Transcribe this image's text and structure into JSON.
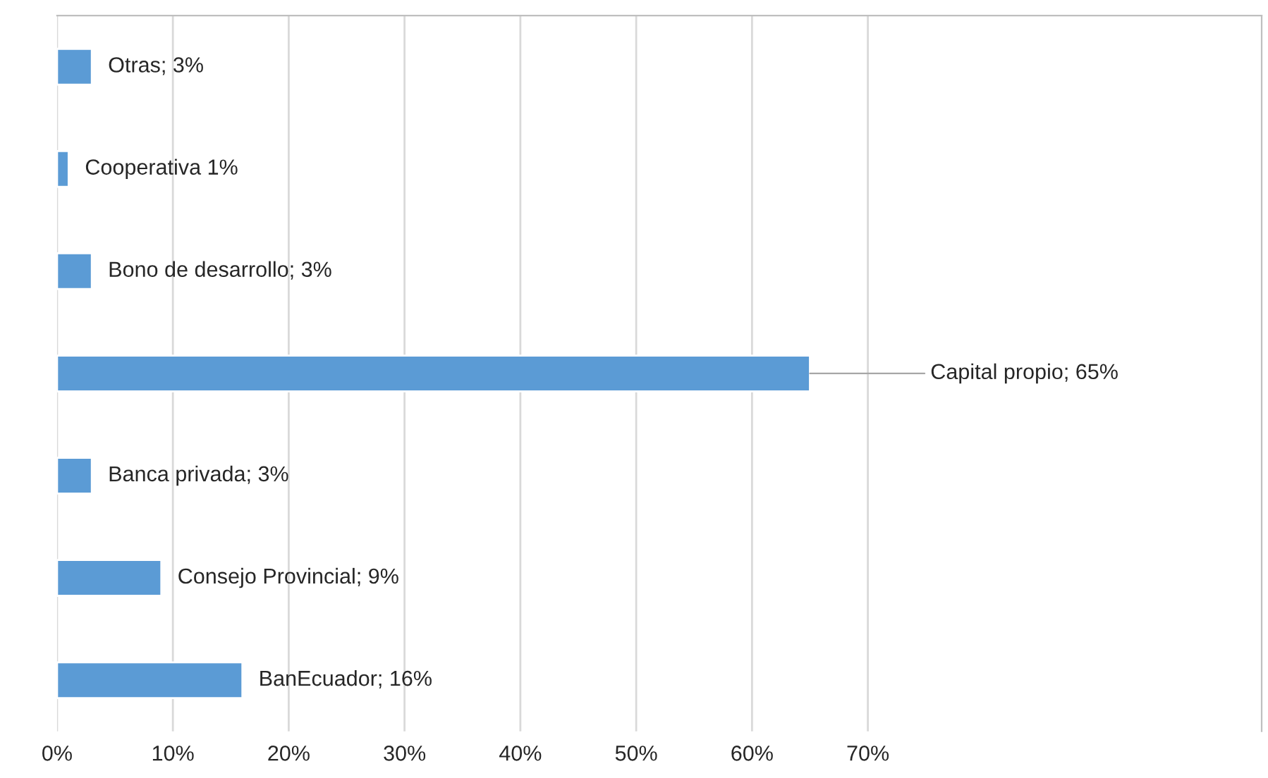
{
  "chart_data": {
    "type": "bar",
    "orientation": "horizontal",
    "categories": [
      null,
      null,
      null,
      null,
      null,
      null,
      null
    ],
    "values": [
      3,
      1,
      3,
      65,
      3,
      9,
      16
    ],
    "value_labels": [
      "Otras; 3%",
      "Cooperativa 1%",
      "Bono de desarrollo; 3%",
      "Capital propio; 65%",
      "Banca privada; 3%",
      "Consejo Provincial; 9%",
      "BanEcuador; 16%"
    ],
    "color": "#5b9bd5",
    "xlim": [
      0,
      104
    ],
    "xticks": [
      {
        "value": 0,
        "label": "0%"
      },
      {
        "value": 10,
        "label": "10%"
      },
      {
        "value": 20,
        "label": "20%"
      },
      {
        "value": 30,
        "label": "30%"
      },
      {
        "value": 40,
        "label": "40%"
      },
      {
        "value": 50,
        "label": "50%"
      },
      {
        "value": 60,
        "label": "60%"
      },
      {
        "value": 70,
        "label": "70%"
      }
    ],
    "grid": "x",
    "tick_labels": "x"
  }
}
